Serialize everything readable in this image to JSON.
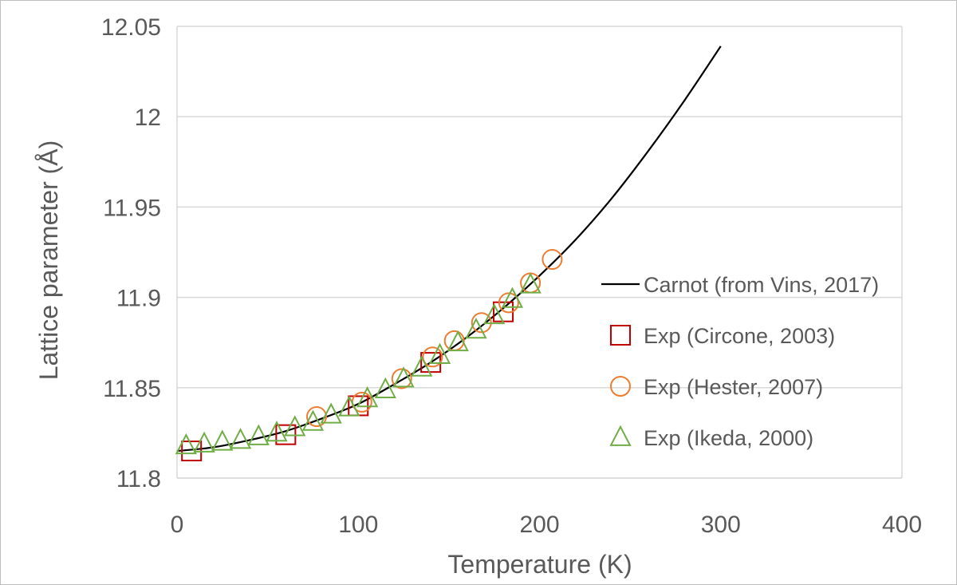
{
  "chart_data": {
    "type": "scatter",
    "xlabel": "Temperature (K)",
    "ylabel": "Lattice parameter (Å)",
    "xlim": [
      0,
      400
    ],
    "ylim": [
      11.8,
      12.05
    ],
    "x_ticks": [
      "0",
      "100",
      "200",
      "300",
      "400"
    ],
    "y_ticks": [
      "11.8",
      "11.85",
      "11.9",
      "11.95",
      "12",
      "12.05"
    ],
    "grid": "horizontal",
    "legend_position": "right",
    "series": [
      {
        "name": "Carnot (from Vins, 2017)",
        "kind": "line",
        "color": "#000000",
        "x": [
          0,
          20,
          40,
          60,
          80,
          100,
          120,
          140,
          160,
          180,
          200,
          220,
          240,
          260,
          280,
          300
        ],
        "y": [
          11.815,
          11.817,
          11.821,
          11.826,
          11.833,
          11.841,
          11.852,
          11.864,
          11.878,
          11.894,
          11.912,
          11.932,
          11.955,
          11.981,
          12.009,
          12.039
        ]
      },
      {
        "name": "Exp (Circone, 2003)",
        "kind": "marker",
        "marker": "square",
        "color": "#c00000",
        "x": [
          8,
          60,
          100,
          140,
          180
        ],
        "y": [
          11.815,
          11.824,
          11.84,
          11.864,
          11.892
        ]
      },
      {
        "name": "Exp (Hester, 2007)",
        "kind": "marker",
        "marker": "circle",
        "color": "#ed7d31",
        "x": [
          77,
          102,
          124,
          141,
          153,
          168,
          183,
          195,
          207
        ],
        "y": [
          11.834,
          11.842,
          11.855,
          11.867,
          11.876,
          11.886,
          11.897,
          11.908,
          11.921
        ]
      },
      {
        "name": "Exp (Ikeda, 2000)",
        "kind": "marker",
        "marker": "triangle",
        "color": "#70ad47",
        "x": [
          5,
          15,
          25,
          35,
          45,
          55,
          65,
          75,
          85,
          95,
          105,
          115,
          125,
          135,
          145,
          155,
          165,
          175,
          185,
          195
        ],
        "y": [
          11.818,
          11.819,
          11.82,
          11.821,
          11.823,
          11.825,
          11.828,
          11.831,
          11.835,
          11.839,
          11.844,
          11.849,
          11.855,
          11.861,
          11.868,
          11.875,
          11.882,
          11.89,
          11.899,
          11.907
        ]
      }
    ]
  }
}
